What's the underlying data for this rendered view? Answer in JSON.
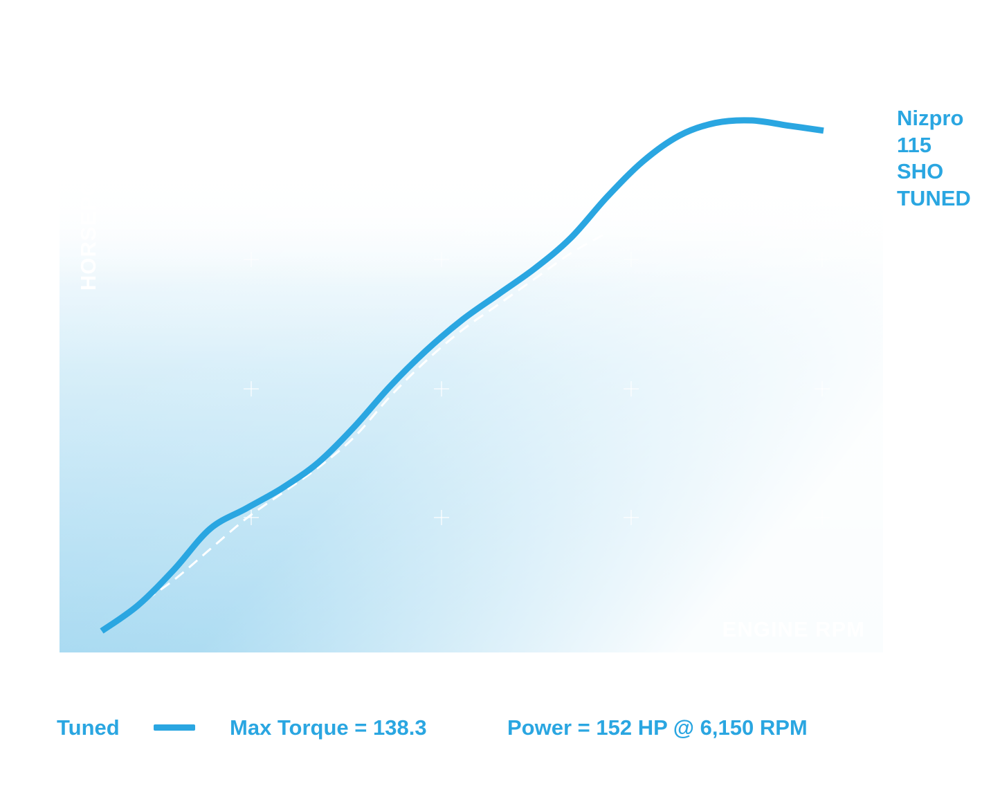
{
  "chart_data": {
    "type": "line",
    "title": "Nizpro 115 SHO TUNED",
    "title_lines": [
      "Nizpro",
      "115",
      "SHO",
      "TUNED"
    ],
    "xlabel": "ENGINE RPM",
    "ylabel": "HORSEPOWER",
    "ylabel_visible": "HORSEPOW",
    "xlim": [
      0,
      1
    ],
    "ylim": [
      0,
      1
    ],
    "grid": "plus-markers",
    "series": [
      {
        "name": "Tuned",
        "style": "solid",
        "color": "#2aa6e1",
        "x": [
          0.0,
          0.05,
          0.1,
          0.15,
          0.2,
          0.25,
          0.3,
          0.35,
          0.4,
          0.45,
          0.5,
          0.55,
          0.6,
          0.65,
          0.7,
          0.75,
          0.8,
          0.85,
          0.9,
          0.95,
          1.0
        ],
        "y": [
          0.0,
          0.05,
          0.12,
          0.2,
          0.24,
          0.28,
          0.33,
          0.4,
          0.48,
          0.55,
          0.61,
          0.66,
          0.71,
          0.77,
          0.85,
          0.92,
          0.97,
          0.995,
          1.0,
          0.99,
          0.98
        ]
      },
      {
        "name": "",
        "style": "dashed",
        "color": "#ffffff",
        "x": [
          0.0,
          0.05,
          0.1,
          0.15,
          0.2,
          0.25,
          0.3,
          0.35,
          0.4,
          0.45,
          0.5,
          0.55,
          0.6,
          0.65,
          0.7
        ],
        "y": [
          0.0,
          0.05,
          0.1,
          0.16,
          0.22,
          0.27,
          0.32,
          0.38,
          0.46,
          0.53,
          0.59,
          0.64,
          0.69,
          0.74,
          0.78
        ]
      }
    ]
  },
  "legend": {
    "series_label": "Tuned",
    "max_torque": "Max Torque = 138.3",
    "power": "Power = 152 HP @ 6,150 RPM"
  },
  "colors": {
    "accent": "#2aa6e1",
    "background_bottom": "#9fd6f0",
    "background_top": "#ffffff",
    "dashed_line": "#ffffff"
  }
}
